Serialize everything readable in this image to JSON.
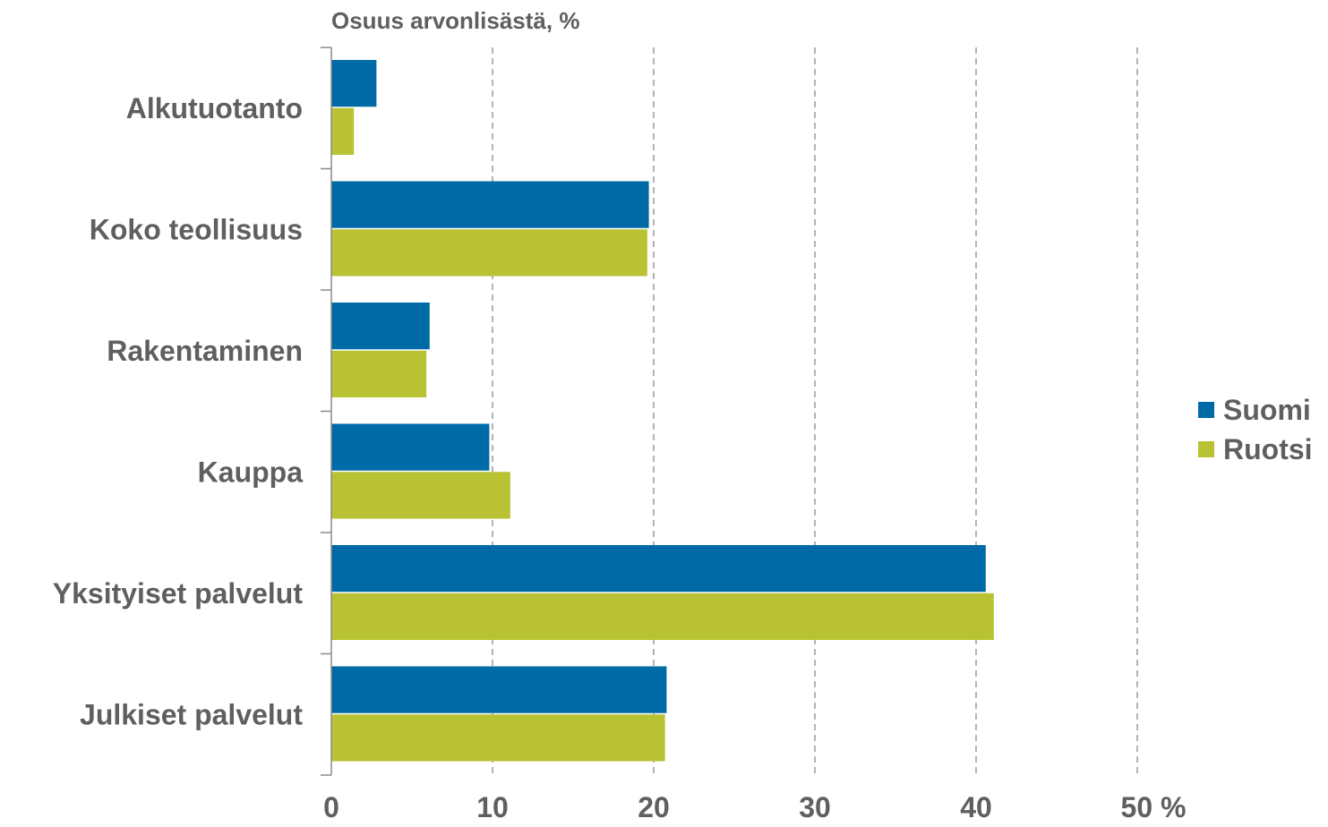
{
  "chart_data": {
    "type": "bar",
    "orientation": "horizontal",
    "subtitle": "Osuus arvonlisästä, %",
    "categories": [
      "Alkutuotanto",
      "Koko teollisuus",
      "Rakentaminen",
      "Kauppa",
      "Yksityiset palvelut",
      "Julkiset palvelut"
    ],
    "series": [
      {
        "name": "Suomi",
        "color": "#006aa7",
        "values": [
          2.8,
          19.7,
          6.1,
          9.8,
          40.6,
          20.8
        ]
      },
      {
        "name": "Ruotsi",
        "color": "#b8c232",
        "values": [
          1.4,
          19.6,
          5.9,
          11.1,
          41.1,
          20.7
        ]
      }
    ],
    "xlim": [
      0,
      50
    ],
    "xticks": [
      0,
      10,
      20,
      30,
      40,
      50
    ],
    "xtick_labels": [
      "0",
      "10",
      "20",
      "30",
      "40",
      "50"
    ],
    "x_unit": "%",
    "grid": "vertical dashed",
    "legend_position": "right"
  }
}
